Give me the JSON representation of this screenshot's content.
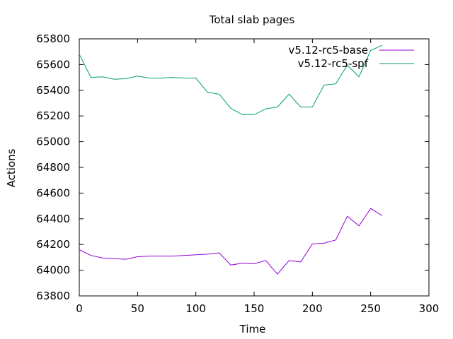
{
  "chart_data": {
    "type": "line",
    "title": "Total slab pages",
    "xlabel": "Time",
    "ylabel": "Actions",
    "xlim": [
      0,
      300
    ],
    "ylim": [
      63800,
      65800
    ],
    "xticks": [
      0,
      50,
      100,
      150,
      200,
      250,
      300
    ],
    "yticks": [
      63800,
      64000,
      64200,
      64400,
      64600,
      64800,
      65000,
      65200,
      65400,
      65600,
      65800
    ],
    "grid": false,
    "legend_position": "top-right",
    "series": [
      {
        "name": "v5.12-rc5-base",
        "color": "#9400d3",
        "x": [
          0,
          10,
          20,
          30,
          40,
          50,
          60,
          70,
          80,
          90,
          100,
          110,
          120,
          130,
          140,
          150,
          160,
          170,
          180,
          190,
          200,
          210,
          220,
          230,
          240,
          250,
          260
        ],
        "y": [
          64160,
          64115,
          64095,
          64090,
          64085,
          64105,
          64110,
          64110,
          64110,
          64115,
          64120,
          64125,
          64135,
          64040,
          64055,
          64050,
          64075,
          63970,
          64075,
          64065,
          64205,
          64210,
          64235,
          64420,
          64345,
          64480,
          64425
        ]
      },
      {
        "name": "v5.12-rc5-spf",
        "color": "#009e73",
        "x": [
          0,
          10,
          20,
          30,
          40,
          50,
          60,
          70,
          80,
          90,
          100,
          110,
          120,
          130,
          140,
          150,
          160,
          170,
          180,
          190,
          200,
          210,
          220,
          230,
          240,
          250,
          260
        ],
        "y": [
          65680,
          65500,
          65505,
          65485,
          65490,
          65510,
          65495,
          65495,
          65500,
          65495,
          65495,
          65385,
          65370,
          65260,
          65210,
          65210,
          65255,
          65270,
          65370,
          65270,
          65270,
          65440,
          65450,
          65595,
          65505,
          65710,
          65750
        ]
      }
    ]
  }
}
